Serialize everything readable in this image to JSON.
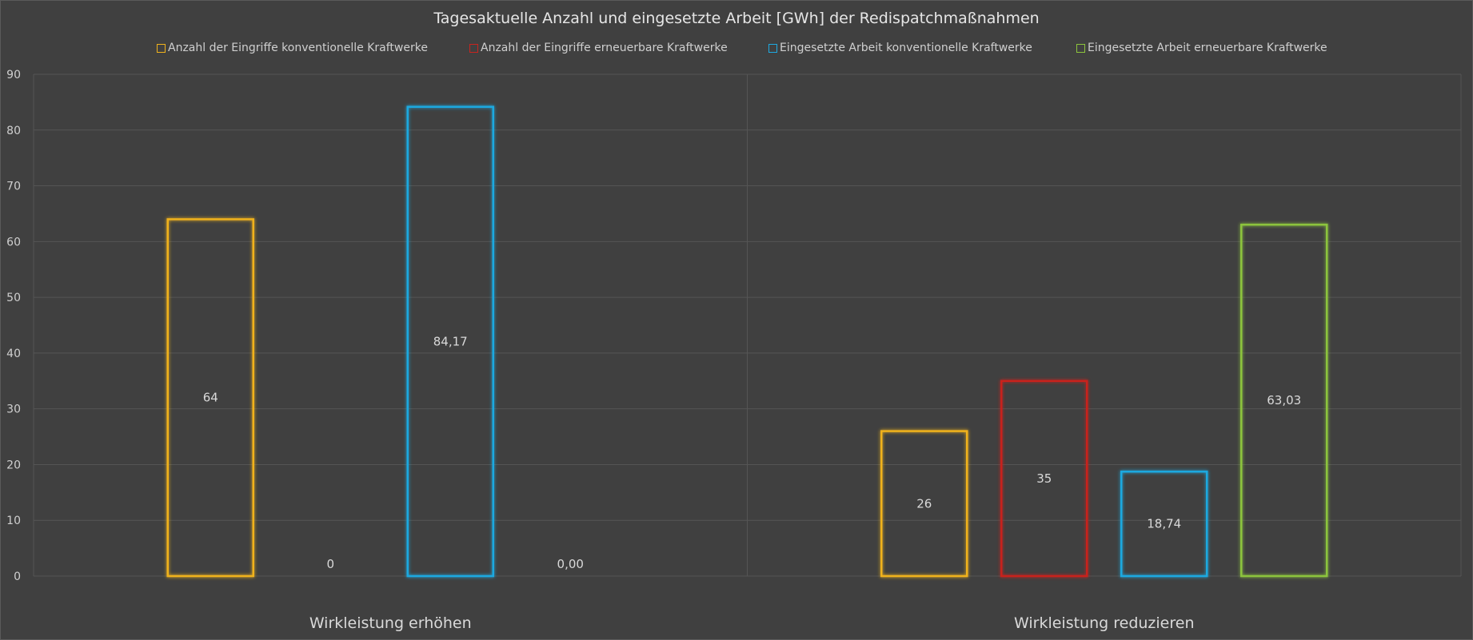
{
  "chart_data": {
    "type": "bar",
    "title": "Tagesaktuelle Anzahl und eingesetzte Arbeit [GWh] der Redispatchmaßnahmen",
    "categories": [
      "Wirkleistung erhöhen",
      "Wirkleistung reduzieren"
    ],
    "series": [
      {
        "name": "Anzahl der Eingriffe konventionelle Kraftwerke",
        "color": "#f0b21c",
        "values": [
          64,
          26
        ],
        "labels": [
          "64",
          "26"
        ]
      },
      {
        "name": "Anzahl der Eingriffe erneuerbare Kraftwerke",
        "color": "#c8241f",
        "values": [
          0,
          35
        ],
        "labels": [
          "0",
          "35"
        ]
      },
      {
        "name": "Eingesetzte Arbeit  konventionelle Kraftwerke",
        "color": "#1ea9e0",
        "values": [
          84.17,
          18.74
        ],
        "labels": [
          "84,17",
          "18,74"
        ]
      },
      {
        "name": "Eingesetzte Arbeit erneuerbare Kraftwerke",
        "color": "#8cc43c",
        "values": [
          0.0,
          63.03
        ],
        "labels": [
          "0,00",
          "63,03"
        ]
      }
    ],
    "yticks": [
      "0",
      "10",
      "20",
      "30",
      "40",
      "50",
      "60",
      "70",
      "80",
      "90"
    ],
    "ylim": [
      0,
      90
    ],
    "grid": true,
    "legend_position": "top"
  },
  "colors": {
    "background": "#404040",
    "grid": "#555555",
    "text": "#d9d9d9"
  }
}
